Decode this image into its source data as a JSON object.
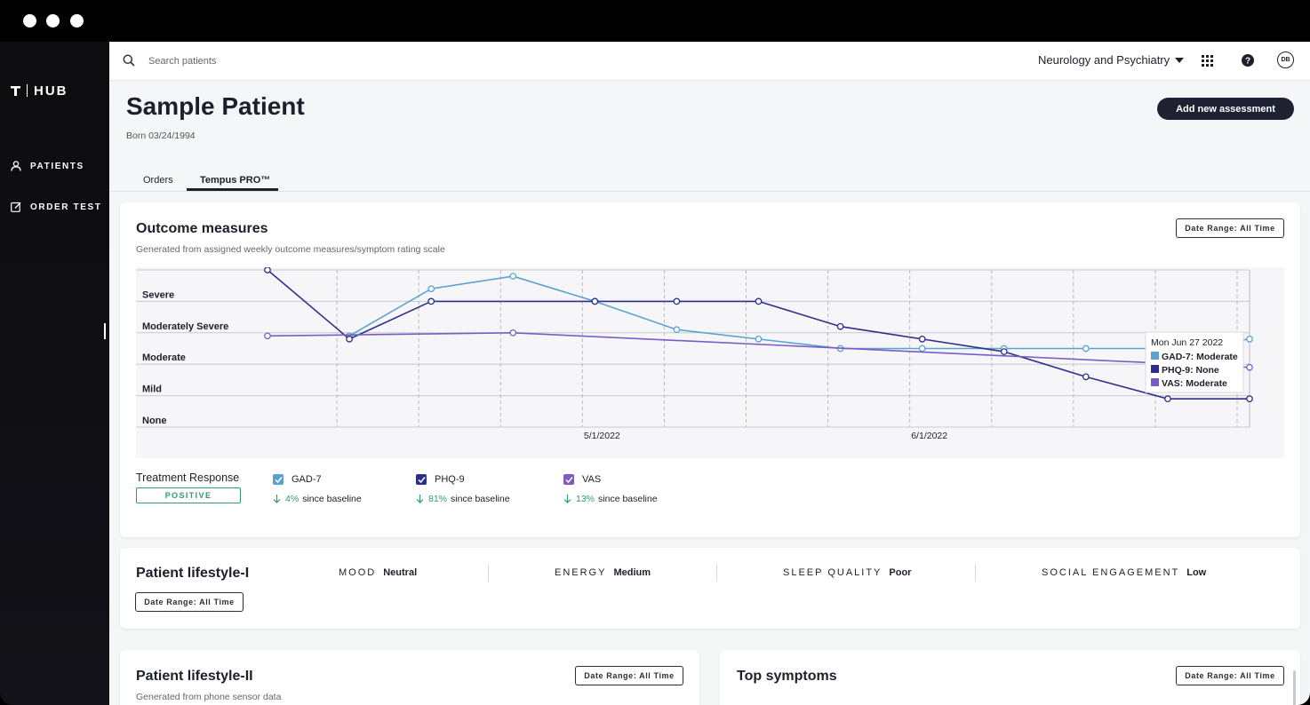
{
  "sidebar": {
    "brand": "HUB",
    "items": [
      {
        "label": "PATIENTS",
        "icon": "person-icon"
      },
      {
        "label": "ORDER TEST",
        "icon": "edit-icon"
      }
    ]
  },
  "topbar": {
    "search_placeholder": "Search patients",
    "department": "Neurology and Psychiatry",
    "avatar_initials": "DB"
  },
  "patient": {
    "name": "Sample Patient",
    "dob": "Born 03/24/1994",
    "add_button": "Add new assessment"
  },
  "tabs": [
    {
      "label": "Orders",
      "active": false
    },
    {
      "label": "Tempus PRO™",
      "active": true
    }
  ],
  "outcome": {
    "title": "Outcome measures",
    "subtitle": "Generated from assigned weekly outcome measures/symptom rating scale",
    "date_range": "Date Range: All Time",
    "treatment_label": "Treatment Response",
    "treatment_badge": "POSITIVE",
    "measures": [
      {
        "name": "GAD-7",
        "pct": "4%",
        "suffix": "since baseline",
        "color": "#5aa3cf"
      },
      {
        "name": "PHQ-9",
        "pct": "81%",
        "suffix": "since baseline",
        "color": "#2e2f8a"
      },
      {
        "name": "VAS",
        "pct": "13%",
        "suffix": "since baseline",
        "color": "#7a5cc4"
      }
    ]
  },
  "chart_data": {
    "type": "line",
    "y_levels": [
      "None",
      "Mild",
      "Moderate",
      "Moderately Severe",
      "Severe"
    ],
    "x_ticks": [
      "5/1/2022",
      "6/1/2022"
    ],
    "x": [
      "2022-04-03",
      "2022-04-10",
      "2022-04-17",
      "2022-04-24",
      "2022-05-01",
      "2022-05-08",
      "2022-05-15",
      "2022-05-22",
      "2022-05-29",
      "2022-06-05",
      "2022-06-12",
      "2022-06-19",
      "2022-06-27"
    ],
    "series": [
      {
        "name": "GAD-7",
        "color": "#5aa3cf",
        "points": [
          [
            1,
            2.9
          ],
          [
            2,
            4.4
          ],
          [
            3,
            4.8
          ],
          [
            4,
            4.0
          ],
          [
            5,
            3.1
          ],
          [
            6,
            2.8
          ],
          [
            7,
            2.5
          ],
          [
            8,
            2.5
          ],
          [
            9,
            2.5
          ],
          [
            10,
            2.5
          ],
          [
            11,
            2.5
          ],
          [
            12,
            2.8
          ]
        ]
      },
      {
        "name": "PHQ-9",
        "color": "#2e2f8a",
        "points": [
          [
            0,
            5.0
          ],
          [
            1,
            2.8
          ],
          [
            2,
            4.0
          ],
          [
            4,
            4.0
          ],
          [
            5,
            4.0
          ],
          [
            6,
            4.0
          ],
          [
            7,
            3.2
          ],
          [
            8,
            2.8
          ],
          [
            9,
            2.4
          ],
          [
            10,
            1.6
          ],
          [
            11,
            0.9
          ],
          [
            12,
            0.9
          ]
        ]
      },
      {
        "name": "VAS",
        "color": "#7a5cc4",
        "points": [
          [
            0,
            2.9
          ],
          [
            3,
            3.0
          ],
          [
            12,
            1.9
          ]
        ]
      }
    ],
    "tooltip": {
      "title": "Mon Jun 27 2022",
      "lines": [
        {
          "text": "GAD-7: Moderate",
          "color": "#5aa3cf"
        },
        {
          "text": "PHQ-9: None",
          "color": "#2e2f8a"
        },
        {
          "text": "VAS: Moderate",
          "color": "#7a5cc4"
        }
      ]
    }
  },
  "lifestyle1": {
    "title": "Patient lifestyle-I",
    "date_range": "Date Range: All Time",
    "stats": [
      {
        "label": "MOOD",
        "value": "Neutral"
      },
      {
        "label": "ENERGY",
        "value": "Medium"
      },
      {
        "label": "SLEEP QUALITY",
        "value": "Poor"
      },
      {
        "label": "SOCIAL ENGAGEMENT",
        "value": "Low"
      }
    ]
  },
  "lifestyle2": {
    "title": "Patient lifestyle-II",
    "subtitle": "Generated from phone sensor data",
    "date_range": "Date Range: All Time"
  },
  "symptoms": {
    "title": "Top symptoms",
    "date_range": "Date Range: All Time"
  }
}
